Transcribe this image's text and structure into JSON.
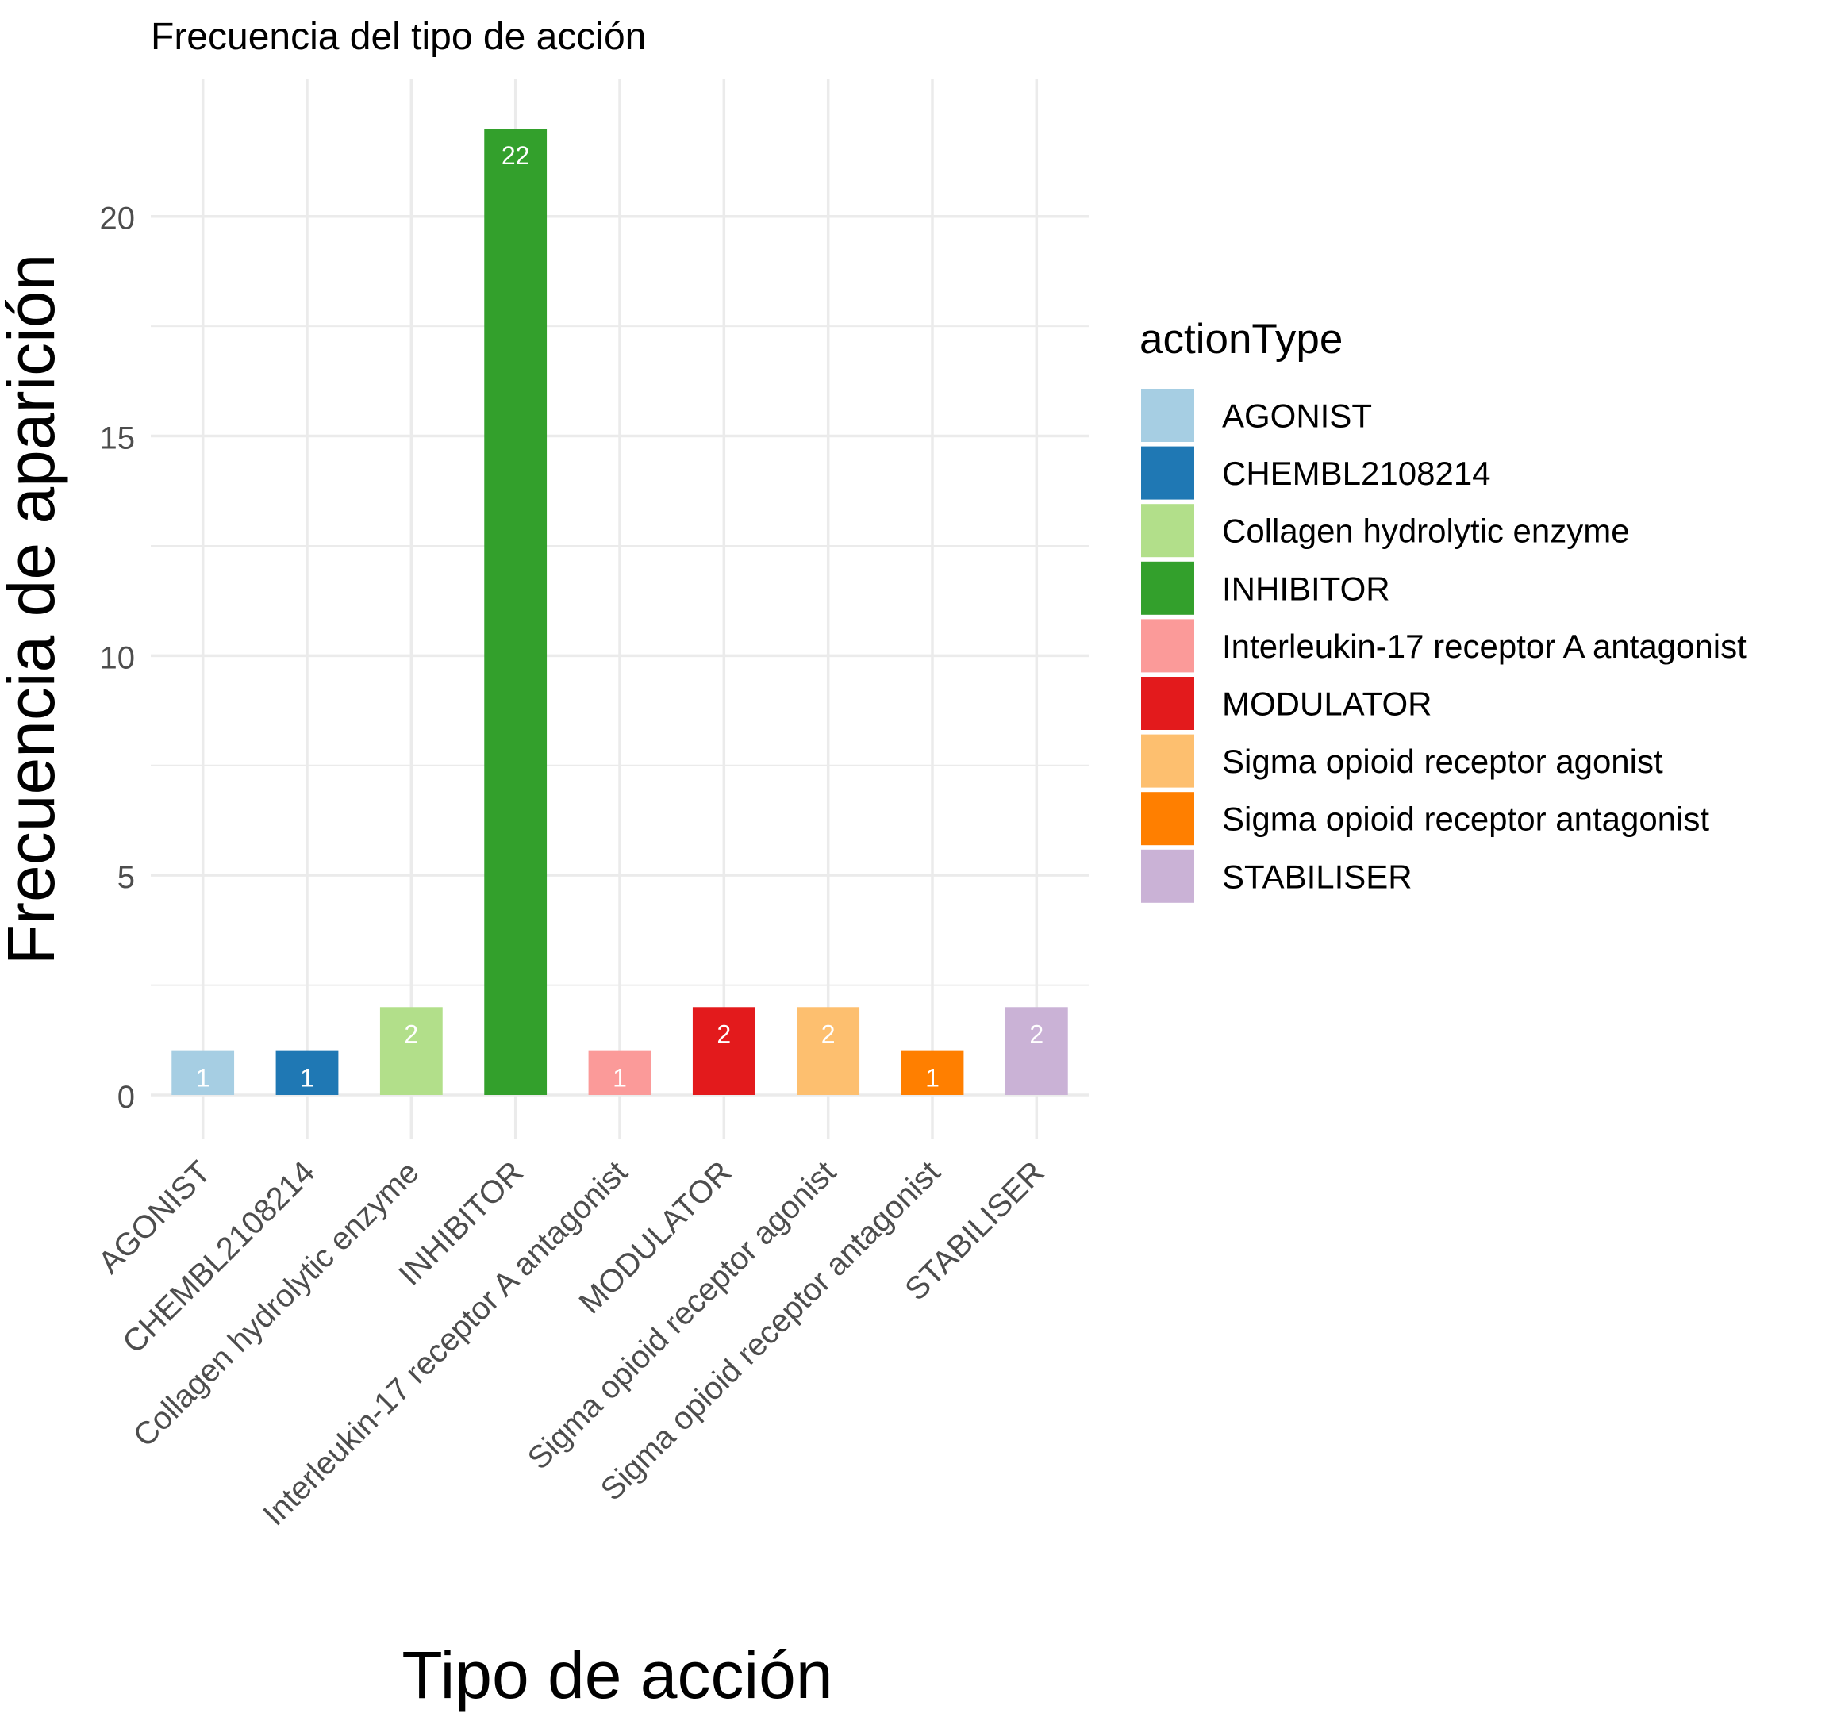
{
  "chart_data": {
    "type": "bar",
    "title": "Frecuencia del tipo de acción",
    "xlabel": "Tipo de acción",
    "ylabel": "Frecuencia de aparición",
    "categories": [
      "AGONIST",
      "CHEMBL2108214",
      "Collagen hydrolytic enzyme",
      "INHIBITOR",
      "Interleukin-17 receptor A antagonist",
      "MODULATOR",
      "Sigma opioid receptor agonist",
      "Sigma opioid receptor antagonist",
      "STABILISER"
    ],
    "values": [
      1,
      1,
      2,
      22,
      1,
      2,
      2,
      1,
      2
    ],
    "colors": [
      "#A6CEE3",
      "#1F78B4",
      "#B2DF8A",
      "#33A02C",
      "#FB9A99",
      "#E31A1C",
      "#FDBF6F",
      "#FF7F00",
      "#CAB2D6"
    ],
    "ylim": [
      0,
      22
    ],
    "yticks": [
      0,
      5,
      10,
      15,
      20
    ],
    "grid": true,
    "legend": {
      "title": "actionType",
      "position": "right"
    }
  }
}
